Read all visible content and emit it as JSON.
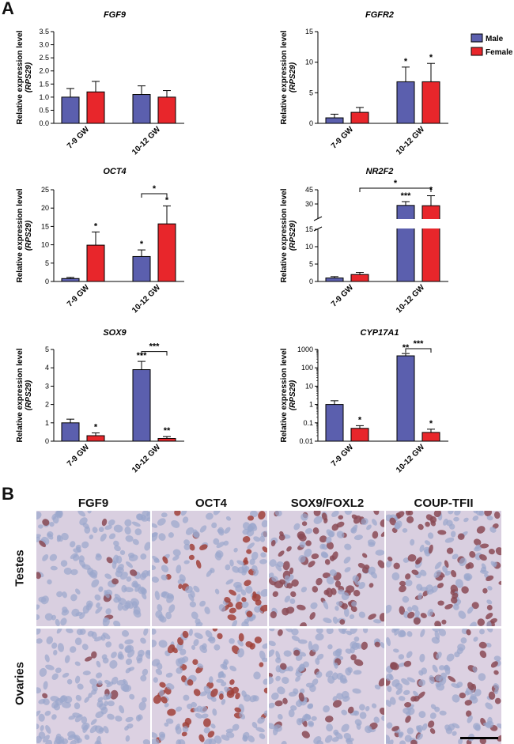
{
  "panel_a_letter": "A",
  "panel_b_letter": "B",
  "legend": [
    {
      "label": "Male",
      "color": "#5b5fae"
    },
    {
      "label": "Female",
      "color": "#e8262b"
    }
  ],
  "ylabel_line1": "Relative expression level",
  "ylabel_line2": "(RPS29)",
  "chart_data": [
    {
      "type": "bar",
      "title": "FGF9",
      "categories": [
        "7-9 GW",
        "10-12 GW"
      ],
      "series": [
        {
          "name": "Male",
          "values": [
            1.0,
            1.1
          ],
          "errors": [
            0.33,
            0.33
          ]
        },
        {
          "name": "Female",
          "values": [
            1.2,
            1.0
          ],
          "errors": [
            0.4,
            0.25
          ]
        }
      ],
      "ylim": [
        0,
        3.5
      ],
      "yticks": [
        "0.0",
        "0.5",
        "1.0",
        "1.5",
        "2.0",
        "2.5",
        "3.0",
        "3.5"
      ],
      "ytick_values": [
        0,
        0.5,
        1.0,
        1.5,
        2.0,
        2.5,
        3.0,
        3.5
      ],
      "stars": [],
      "brackets": []
    },
    {
      "type": "bar",
      "title": "FGFR2",
      "categories": [
        "7-9 GW",
        "10-12 GW"
      ],
      "series": [
        {
          "name": "Male",
          "values": [
            0.9,
            6.8
          ],
          "errors": [
            0.6,
            2.4
          ]
        },
        {
          "name": "Female",
          "values": [
            1.8,
            6.8
          ],
          "errors": [
            0.8,
            3.0
          ]
        }
      ],
      "ylim": [
        0,
        15
      ],
      "yticks": [
        "0",
        "5",
        "10",
        "15"
      ],
      "ytick_values": [
        0,
        5,
        10,
        15
      ],
      "stars": [
        {
          "group": 1,
          "series": 0,
          "text": "*"
        },
        {
          "group": 1,
          "series": 1,
          "text": "*"
        }
      ],
      "brackets": []
    },
    {
      "type": "bar",
      "title": "OCT4",
      "categories": [
        "7-9 GW",
        "10-12 GW"
      ],
      "series": [
        {
          "name": "Male",
          "values": [
            0.8,
            6.8
          ],
          "errors": [
            0.3,
            1.8
          ]
        },
        {
          "name": "Female",
          "values": [
            9.9,
            15.7
          ],
          "errors": [
            3.6,
            4.9
          ]
        }
      ],
      "ylim": [
        0,
        25
      ],
      "yticks": [
        "0",
        "5",
        "10",
        "15",
        "20",
        "25"
      ],
      "ytick_values": [
        0,
        5,
        10,
        15,
        20,
        25
      ],
      "stars": [
        {
          "group": 0,
          "series": 1,
          "text": "*"
        },
        {
          "group": 1,
          "series": 0,
          "text": "*"
        },
        {
          "group": 1,
          "series": 1,
          "text": "*"
        }
      ],
      "brackets": [
        {
          "from": [
            1,
            0
          ],
          "to": [
            1,
            1
          ],
          "level": 23.5,
          "text": "*"
        }
      ]
    },
    {
      "type": "bar",
      "title": "NR2F2",
      "categories": [
        "7-9 GW",
        "10-12 GW"
      ],
      "series": [
        {
          "name": "Male",
          "values": [
            1.0,
            28.5
          ],
          "errors": [
            0.4,
            4.0
          ]
        },
        {
          "name": "Female",
          "values": [
            2.0,
            28.2
          ],
          "errors": [
            0.6,
            10.5
          ]
        }
      ],
      "broken_axis": true,
      "ylim": [
        0,
        45
      ],
      "yticks": [
        "0",
        "5",
        "10",
        "15",
        "30",
        "45"
      ],
      "ytick_values": [
        0,
        5,
        10,
        15,
        30,
        45
      ],
      "stars": [
        {
          "group": 1,
          "series": 0,
          "text": "***"
        },
        {
          "group": 1,
          "series": 1,
          "text": "*"
        }
      ],
      "brackets": [
        {
          "from": [
            0,
            1
          ],
          "to": [
            1,
            1
          ],
          "level": 45,
          "text": "*"
        }
      ]
    },
    {
      "type": "bar",
      "title": "SOX9",
      "categories": [
        "7-9 GW",
        "10-12 GW"
      ],
      "series": [
        {
          "name": "Male",
          "values": [
            1.0,
            3.9
          ],
          "errors": [
            0.2,
            0.45
          ]
        },
        {
          "name": "Female",
          "values": [
            0.3,
            0.15
          ],
          "errors": [
            0.15,
            0.1
          ]
        }
      ],
      "ylim": [
        0,
        5
      ],
      "yticks": [
        "0",
        "1",
        "2",
        "3",
        "4",
        "5"
      ],
      "ytick_values": [
        0,
        1,
        2,
        3,
        4,
        5
      ],
      "stars": [
        {
          "group": 0,
          "series": 1,
          "text": "*"
        },
        {
          "group": 1,
          "series": 0,
          "text": "***"
        },
        {
          "group": 1,
          "series": 1,
          "text": "**"
        }
      ],
      "brackets": [
        {
          "from": [
            1,
            0
          ],
          "to": [
            1,
            1
          ],
          "level": 4.8,
          "text": "***"
        }
      ]
    },
    {
      "type": "bar",
      "title": "CYP17A1",
      "categories": [
        "7-9 GW",
        "10-12 GW"
      ],
      "series": [
        {
          "name": "Male",
          "values": [
            1.0,
            450
          ],
          "errors": [
            0.6,
            150
          ]
        },
        {
          "name": "Female",
          "values": [
            0.05,
            0.03
          ],
          "errors": [
            0.02,
            0.015
          ]
        }
      ],
      "log_scale": true,
      "ylim": [
        0.01,
        1000
      ],
      "yticks": [
        "0.01",
        "0.1",
        "1",
        "10",
        "100",
        "1000"
      ],
      "ytick_values": [
        0.01,
        0.1,
        1,
        10,
        100,
        1000
      ],
      "stars": [
        {
          "group": 0,
          "series": 1,
          "text": "*"
        },
        {
          "group": 1,
          "series": 0,
          "text": "**"
        },
        {
          "group": 1,
          "series": 1,
          "text": "*"
        }
      ],
      "brackets": [
        {
          "from": [
            1,
            0
          ],
          "to": [
            1,
            1
          ],
          "level": 900,
          "text": "***"
        }
      ]
    }
  ],
  "micrographs": {
    "columns": [
      "FGF9",
      "OCT4",
      "SOX9/FOXL2",
      "COUP-TFII"
    ],
    "rows": [
      "Testes",
      "Ovaries"
    ]
  }
}
